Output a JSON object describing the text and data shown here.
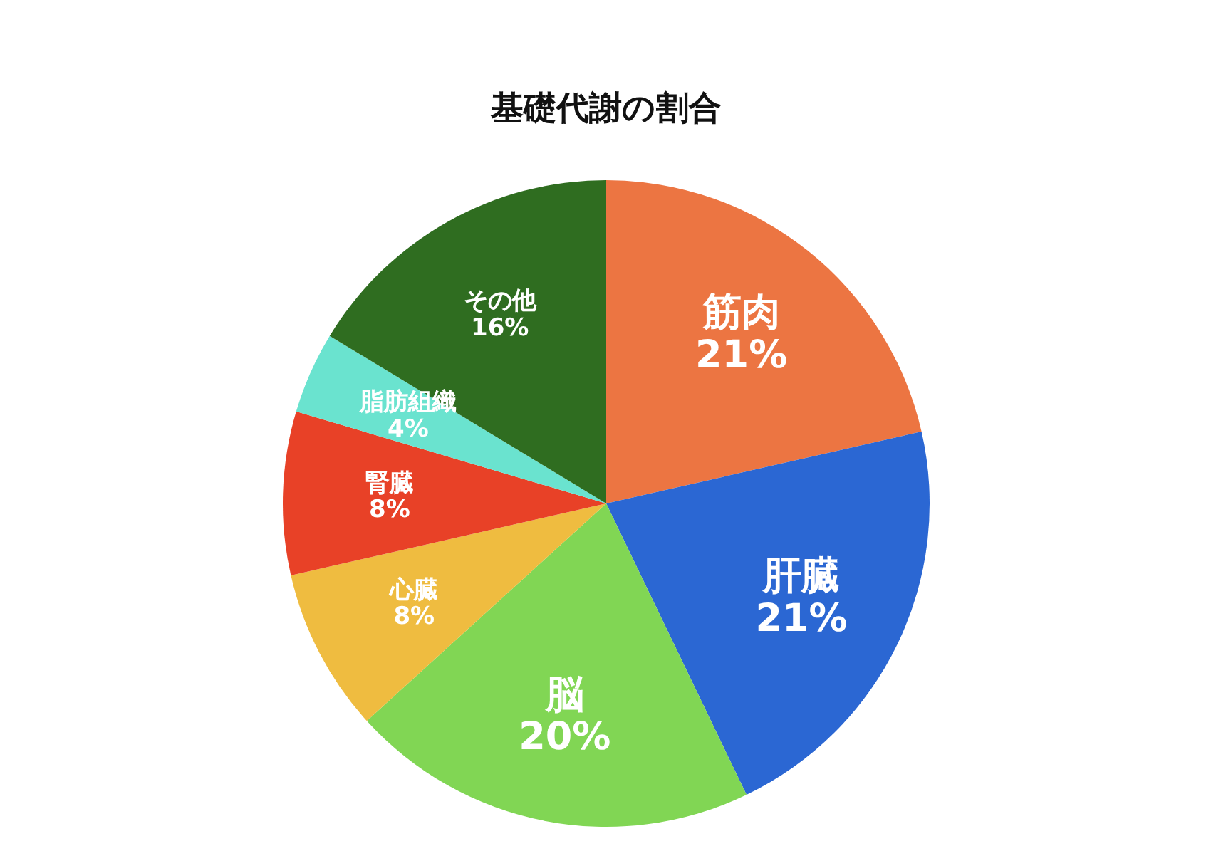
{
  "chart_data": {
    "type": "pie",
    "title": "基礎代謝の割合",
    "categories": [
      "筋肉",
      "肝臓",
      "脳",
      "心臓",
      "腎臓",
      "脂肪組織",
      "その他"
    ],
    "values": [
      21,
      21,
      20,
      8,
      8,
      4,
      16
    ],
    "value_labels": [
      "21%",
      "21%",
      "20%",
      "8%",
      "8%",
      "4%",
      "16%"
    ],
    "colors": [
      "#ec7542",
      "#2b67d3",
      "#81d654",
      "#efbc40",
      "#e84127",
      "#6ae3cf",
      "#2f6d20"
    ]
  }
}
